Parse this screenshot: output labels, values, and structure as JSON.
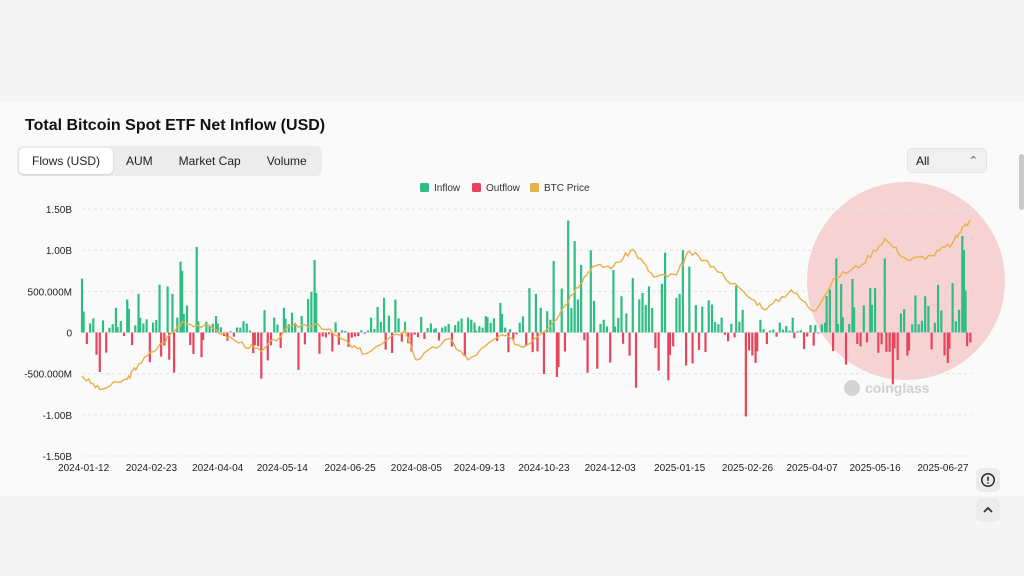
{
  "title": "Total Bitcoin Spot ETF Net Inflow (USD)",
  "tabs": [
    {
      "label": "Flows (USD)",
      "active": true
    },
    {
      "label": "AUM",
      "active": false
    },
    {
      "label": "Market Cap",
      "active": false
    },
    {
      "label": "Volume",
      "active": false
    }
  ],
  "range_select": {
    "value": "All"
  },
  "watermark": "coinglass",
  "colors": {
    "inflow": "#2ebd85",
    "outflow": "#e5455d",
    "price": "#e8b04a",
    "highlight": "#f7c9c9"
  },
  "chart_data": {
    "type": "bar",
    "legend": [
      {
        "name": "Inflow",
        "color": "#2ebd85"
      },
      {
        "name": "Outflow",
        "color": "#e5455d"
      },
      {
        "name": "BTC Price",
        "color": "#e8b04a"
      }
    ],
    "legend_position": "top-center",
    "grid": true,
    "y_ticks": [
      "1.50B",
      "1.00B",
      "500.000M",
      "0",
      "-500.000M",
      "-1.00B",
      "-1.50B"
    ],
    "ylim": [
      -1500000000,
      1500000000
    ],
    "x_ticks": [
      "2024-01-12",
      "2024-02-23",
      "2024-04-04",
      "2024-05-14",
      "2024-06-25",
      "2024-08-05",
      "2024-09-13",
      "2024-10-23",
      "2024-12-03",
      "2025-01-15",
      "2025-02-26",
      "2025-04-07",
      "2025-05-16",
      "2025-06-27"
    ],
    "xlim": [
      "2024-01-11",
      "2025-07-15"
    ],
    "series": [
      {
        "name": "Net Inflow",
        "flows_musd": [
          [
            "2024-01-11",
            655
          ],
          [
            "2024-01-16",
            110
          ],
          [
            "2024-01-22",
            -480
          ],
          [
            "2024-02-01",
            300
          ],
          [
            "2024-02-08",
            400
          ],
          [
            "2024-02-15",
            470
          ],
          [
            "2024-02-20",
            160
          ],
          [
            "2024-02-28",
            580
          ],
          [
            "2024-03-04",
            560
          ],
          [
            "2024-03-07",
            470
          ],
          [
            "2024-03-12",
            860
          ],
          [
            "2024-03-13",
            750
          ],
          [
            "2024-03-20",
            -260
          ],
          [
            "2024-03-22",
            1040
          ],
          [
            "2024-03-25",
            -300
          ],
          [
            "2024-04-03",
            200
          ],
          [
            "2024-04-10",
            -100
          ],
          [
            "2024-04-18",
            60
          ],
          [
            "2024-04-26",
            -250
          ],
          [
            "2024-05-01",
            -560
          ],
          [
            "2024-05-09",
            180
          ],
          [
            "2024-05-15",
            300
          ],
          [
            "2024-05-20",
            240
          ],
          [
            "2024-05-22",
            110
          ],
          [
            "2024-06-03",
            880
          ],
          [
            "2024-06-04",
            480
          ],
          [
            "2024-06-10",
            -60
          ],
          [
            "2024-06-14",
            -230
          ],
          [
            "2024-06-18",
            -150
          ],
          [
            "2024-06-24",
            -175
          ],
          [
            "2024-07-08",
            180
          ],
          [
            "2024-07-12",
            310
          ],
          [
            "2024-07-16",
            420
          ],
          [
            "2024-07-23",
            400
          ],
          [
            "2024-07-29",
            130
          ],
          [
            "2024-08-02",
            -230
          ],
          [
            "2024-08-08",
            190
          ],
          [
            "2024-08-16",
            40
          ],
          [
            "2024-08-27",
            -170
          ],
          [
            "2024-09-04",
            -290
          ],
          [
            "2024-09-10",
            120
          ],
          [
            "2024-09-17",
            200
          ],
          [
            "2024-09-26",
            360
          ],
          [
            "2024-10-01",
            -240
          ],
          [
            "2024-10-08",
            120
          ],
          [
            "2024-10-14",
            540
          ],
          [
            "2024-10-18",
            470
          ],
          [
            "2024-10-21",
            300
          ],
          [
            "2024-10-29",
            870
          ],
          [
            "2024-10-31",
            -540
          ],
          [
            "2024-11-07",
            1360
          ],
          [
            "2024-11-11",
            1110
          ],
          [
            "2024-11-15",
            820
          ],
          [
            "2024-11-21",
            1000
          ],
          [
            "2024-11-25",
            -440
          ],
          [
            "2024-12-05",
            760
          ],
          [
            "2024-12-10",
            440
          ],
          [
            "2024-12-17",
            660
          ],
          [
            "2024-12-19",
            -670
          ],
          [
            "2024-12-23",
            480
          ],
          [
            "2024-12-27",
            560
          ],
          [
            "2025-01-06",
            970
          ],
          [
            "2025-01-08",
            -580
          ],
          [
            "2025-01-17",
            1000
          ],
          [
            "2025-01-21",
            800
          ],
          [
            "2025-02-04",
            340
          ],
          [
            "2025-02-10",
            180
          ],
          [
            "2025-02-18",
            -60
          ],
          [
            "2025-02-25",
            -1020
          ],
          [
            "2025-03-03",
            -370
          ],
          [
            "2025-03-10",
            -140
          ],
          [
            "2025-03-18",
            120
          ],
          [
            "2025-03-26",
            180
          ],
          [
            "2025-04-02",
            -200
          ],
          [
            "2025-04-08",
            -160
          ],
          [
            "2025-04-15",
            120
          ],
          [
            "2025-04-22",
            900
          ],
          [
            "2025-04-25",
            590
          ],
          [
            "2025-05-02",
            650
          ],
          [
            "2025-05-09",
            330
          ],
          [
            "2025-05-13",
            540
          ],
          [
            "2025-05-22",
            900
          ],
          [
            "2025-05-27",
            -630
          ],
          [
            "2025-06-05",
            -280
          ],
          [
            "2025-06-10",
            450
          ],
          [
            "2025-06-16",
            440
          ],
          [
            "2025-06-24",
            580
          ],
          [
            "2025-06-30",
            -370
          ],
          [
            "2025-07-03",
            600
          ],
          [
            "2025-07-09",
            1170
          ],
          [
            "2025-07-10",
            1000
          ],
          [
            "2025-07-11",
            510
          ],
          [
            "2025-07-14",
            -120
          ]
        ]
      },
      {
        "name": "BTC Price",
        "approx_price_usd": [
          [
            "2024-01-11",
            46500
          ],
          [
            "2024-01-22",
            40000
          ],
          [
            "2024-02-08",
            45000
          ],
          [
            "2024-02-15",
            52000
          ],
          [
            "2024-03-01",
            62000
          ],
          [
            "2024-03-13",
            72000
          ],
          [
            "2024-04-01",
            69000
          ],
          [
            "2024-04-15",
            63000
          ],
          [
            "2024-05-01",
            58000
          ],
          [
            "2024-05-20",
            70000
          ],
          [
            "2024-06-05",
            71000
          ],
          [
            "2024-06-25",
            61000
          ],
          [
            "2024-07-05",
            57000
          ],
          [
            "2024-07-29",
            68000
          ],
          [
            "2024-08-05",
            54000
          ],
          [
            "2024-08-25",
            64000
          ],
          [
            "2024-09-06",
            54000
          ],
          [
            "2024-09-27",
            66000
          ],
          [
            "2024-10-10",
            60000
          ],
          [
            "2024-10-29",
            72000
          ],
          [
            "2024-11-12",
            88000
          ],
          [
            "2024-11-22",
            98000
          ],
          [
            "2024-12-05",
            98000
          ],
          [
            "2024-12-17",
            106000
          ],
          [
            "2024-12-30",
            93000
          ],
          [
            "2025-01-13",
            94000
          ],
          [
            "2025-01-21",
            105000
          ],
          [
            "2025-02-05",
            98000
          ],
          [
            "2025-02-26",
            84000
          ],
          [
            "2025-03-10",
            78000
          ],
          [
            "2025-03-25",
            87000
          ],
          [
            "2025-04-08",
            77000
          ],
          [
            "2025-04-22",
            93000
          ],
          [
            "2025-05-08",
            99000
          ],
          [
            "2025-05-22",
            111000
          ],
          [
            "2025-06-05",
            101000
          ],
          [
            "2025-06-20",
            103000
          ],
          [
            "2025-07-03",
            109000
          ],
          [
            "2025-07-11",
            118000
          ],
          [
            "2025-07-14",
            119000
          ]
        ]
      }
    ]
  }
}
